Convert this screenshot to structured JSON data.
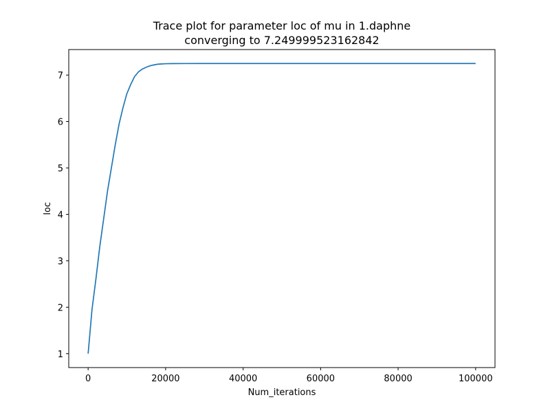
{
  "chart_data": {
    "type": "line",
    "title_line1": "Trace plot for parameter loc of mu in 1.daphne",
    "title_line2": "converging to 7.249999523162842",
    "xlabel": "Num_iterations",
    "ylabel": "loc",
    "xlim": [
      -5000,
      105000
    ],
    "ylim": [
      0.7,
      7.55
    ],
    "x_ticks": [
      0,
      20000,
      40000,
      60000,
      80000,
      100000
    ],
    "x_tick_labels": [
      "0",
      "20000",
      "40000",
      "60000",
      "80000",
      "100000"
    ],
    "y_ticks": [
      1,
      2,
      3,
      4,
      5,
      6,
      7
    ],
    "y_tick_labels": [
      "1",
      "2",
      "3",
      "4",
      "5",
      "6",
      "7"
    ],
    "grid": false,
    "series": [
      {
        "color": "#1f77b4",
        "x": [
          0,
          1000,
          2000,
          3000,
          4000,
          5000,
          6000,
          7000,
          8000,
          9000,
          10000,
          11000,
          12000,
          13000,
          14000,
          15000,
          16000,
          17000,
          18000,
          19000,
          20000,
          22000,
          25000,
          30000,
          40000,
          50000,
          60000,
          70000,
          80000,
          90000,
          100000
        ],
        "y": [
          1.0,
          1.95,
          2.6,
          3.3,
          3.9,
          4.5,
          5.0,
          5.5,
          5.95,
          6.3,
          6.6,
          6.8,
          6.97,
          7.07,
          7.13,
          7.17,
          7.2,
          7.22,
          7.235,
          7.24,
          7.245,
          7.248,
          7.249,
          7.25,
          7.25,
          7.25,
          7.25,
          7.25,
          7.25,
          7.25,
          7.25
        ]
      }
    ]
  }
}
